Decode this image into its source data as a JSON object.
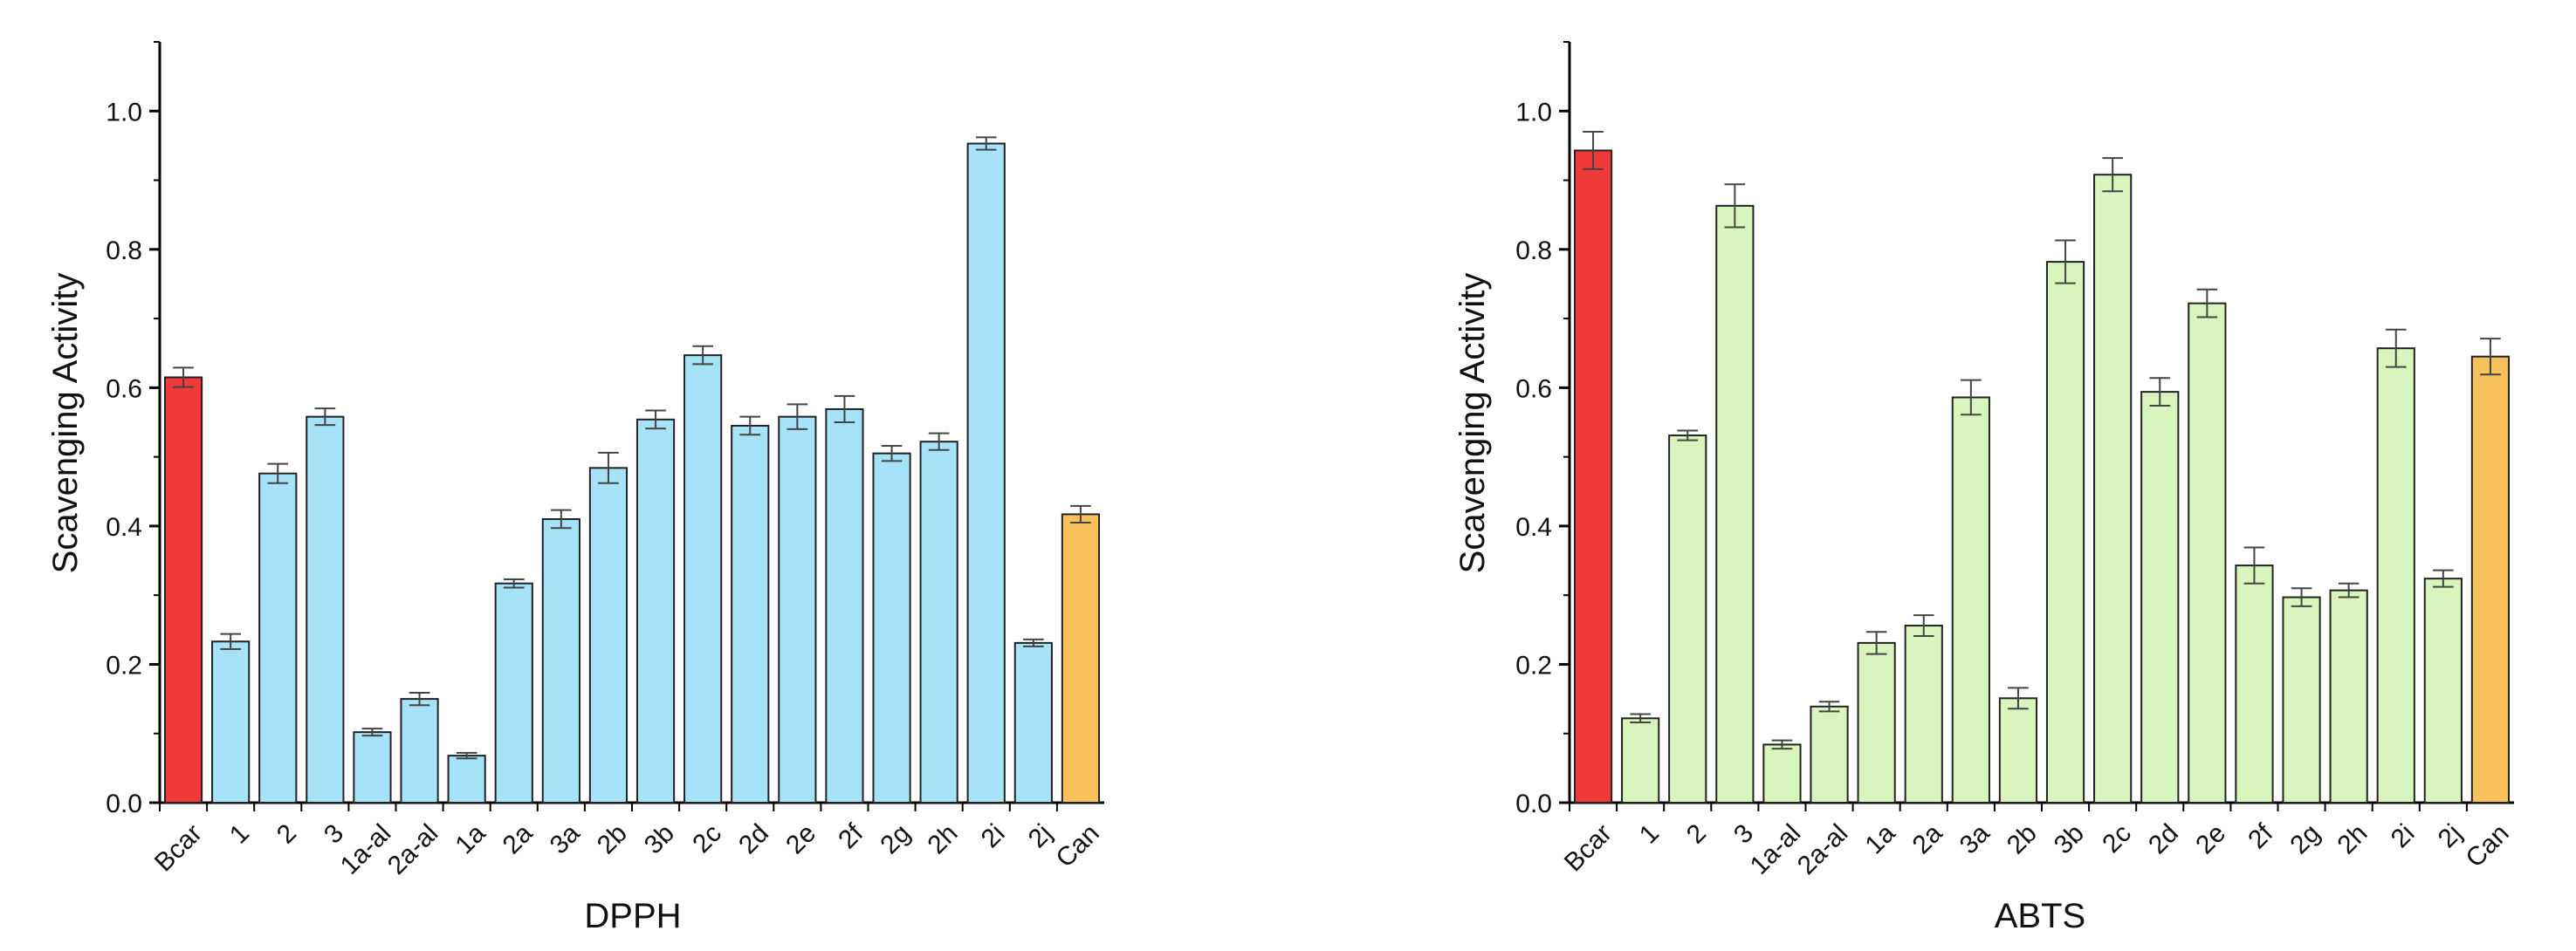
{
  "chart_data": [
    {
      "type": "bar",
      "title": "",
      "xlabel": "DPPH",
      "ylabel": "Scavenging Activity",
      "ylim": [
        0,
        1.1
      ],
      "yticks": [
        0.0,
        0.2,
        0.4,
        0.6,
        0.8,
        1.0
      ],
      "ytick_labels": [
        "0.0",
        "0.2",
        "0.4",
        "0.6",
        "0.8",
        "1.0"
      ],
      "categories": [
        "Bcar",
        "1",
        "2",
        "3",
        "1a-al",
        "2a-al",
        "1a",
        "2a",
        "3a",
        "2b",
        "3b",
        "2c",
        "2d",
        "2e",
        "2f",
        "2g",
        "2h",
        "2i",
        "2j",
        "Can"
      ],
      "values": [
        0.615,
        0.233,
        0.476,
        0.558,
        0.102,
        0.15,
        0.068,
        0.317,
        0.41,
        0.484,
        0.554,
        0.647,
        0.545,
        0.558,
        0.569,
        0.505,
        0.522,
        0.953,
        0.231,
        0.417
      ],
      "errors": [
        0.014,
        0.011,
        0.014,
        0.012,
        0.005,
        0.009,
        0.004,
        0.006,
        0.013,
        0.022,
        0.013,
        0.013,
        0.013,
        0.018,
        0.019,
        0.011,
        0.012,
        0.009,
        0.005,
        0.012
      ],
      "colors": [
        "#f03a3a",
        "#a6e3f8",
        "#a6e3f8",
        "#a6e3f8",
        "#a6e3f8",
        "#a6e3f8",
        "#a6e3f8",
        "#a6e3f8",
        "#a6e3f8",
        "#a6e3f8",
        "#a6e3f8",
        "#a6e3f8",
        "#a6e3f8",
        "#a6e3f8",
        "#a6e3f8",
        "#a6e3f8",
        "#a6e3f8",
        "#a6e3f8",
        "#a6e3f8",
        "#f8c15c"
      ]
    },
    {
      "type": "bar",
      "title": "",
      "xlabel": "ABTS",
      "ylabel": "Scavenging Activity",
      "ylim": [
        0,
        1.1
      ],
      "yticks": [
        0.0,
        0.2,
        0.4,
        0.6,
        0.8,
        1.0
      ],
      "ytick_labels": [
        "0.0",
        "0.2",
        "0.4",
        "0.6",
        "0.8",
        "1.0"
      ],
      "categories": [
        "Bcar",
        "1",
        "2",
        "3",
        "1a-al",
        "2a-al",
        "1a",
        "2a",
        "3a",
        "2b",
        "3b",
        "2c",
        "2d",
        "2e",
        "2f",
        "2g",
        "2h",
        "2i",
        "2j",
        "Can"
      ],
      "values": [
        0.943,
        0.122,
        0.531,
        0.863,
        0.084,
        0.139,
        0.231,
        0.256,
        0.586,
        0.151,
        0.782,
        0.908,
        0.594,
        0.722,
        0.343,
        0.297,
        0.307,
        0.657,
        0.324,
        0.645
      ],
      "errors": [
        0.027,
        0.006,
        0.007,
        0.031,
        0.006,
        0.007,
        0.016,
        0.015,
        0.025,
        0.015,
        0.031,
        0.024,
        0.02,
        0.02,
        0.026,
        0.013,
        0.01,
        0.027,
        0.012,
        0.026
      ],
      "colors": [
        "#f03a3a",
        "#d8f5bd",
        "#d8f5bd",
        "#d8f5bd",
        "#d8f5bd",
        "#d8f5bd",
        "#d8f5bd",
        "#d8f5bd",
        "#d8f5bd",
        "#d8f5bd",
        "#d8f5bd",
        "#d8f5bd",
        "#d8f5bd",
        "#d8f5bd",
        "#d8f5bd",
        "#d8f5bd",
        "#d8f5bd",
        "#d8f5bd",
        "#d8f5bd",
        "#f8c15c"
      ]
    }
  ]
}
